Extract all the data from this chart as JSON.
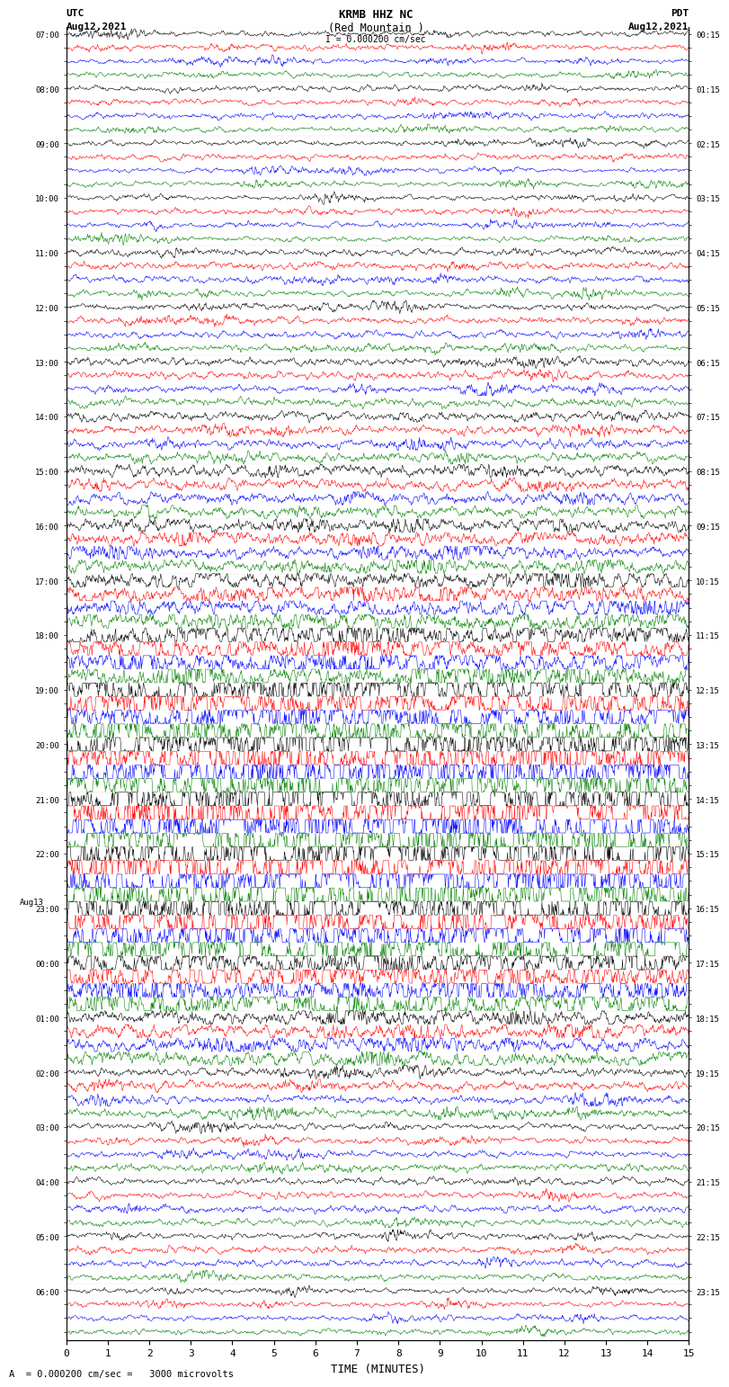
{
  "title_line1": "KRMB HHZ NC",
  "title_line2": "(Red Mountain )",
  "scale_line": "= 0.000200 cm/sec",
  "bottom_label": "A  = 0.000200 cm/sec =   3000 microvolts",
  "xlabel": "TIME (MINUTES)",
  "utc_label": "UTC",
  "pdt_label": "PDT",
  "date_label": "Aug12,2021",
  "aug13_label": "Aug13",
  "xlim": [
    0,
    15
  ],
  "xticks": [
    0,
    1,
    2,
    3,
    4,
    5,
    6,
    7,
    8,
    9,
    10,
    11,
    12,
    13,
    14,
    15
  ],
  "bg_color": "#ffffff",
  "trace_colors": [
    "black",
    "red",
    "blue",
    "green"
  ],
  "n_rows": 96,
  "left_times": [
    "07:00",
    "",
    "",
    "",
    "08:00",
    "",
    "",
    "",
    "09:00",
    "",
    "",
    "",
    "10:00",
    "",
    "",
    "",
    "11:00",
    "",
    "",
    "",
    "12:00",
    "",
    "",
    "",
    "13:00",
    "",
    "",
    "",
    "14:00",
    "",
    "",
    "",
    "15:00",
    "",
    "",
    "",
    "16:00",
    "",
    "",
    "",
    "17:00",
    "",
    "",
    "",
    "18:00",
    "",
    "",
    "",
    "19:00",
    "",
    "",
    "",
    "20:00",
    "",
    "",
    "",
    "21:00",
    "",
    "",
    "",
    "22:00",
    "",
    "",
    "",
    "23:00",
    "",
    "",
    "",
    "00:00",
    "",
    "",
    "",
    "01:00",
    "",
    "",
    "",
    "02:00",
    "",
    "",
    "",
    "03:00",
    "",
    "",
    "",
    "04:00",
    "",
    "",
    "",
    "05:00",
    "",
    "",
    "",
    "06:00",
    "",
    "",
    ""
  ],
  "right_times": [
    "00:15",
    "",
    "",
    "",
    "01:15",
    "",
    "",
    "",
    "02:15",
    "",
    "",
    "",
    "03:15",
    "",
    "",
    "",
    "04:15",
    "",
    "",
    "",
    "05:15",
    "",
    "",
    "",
    "06:15",
    "",
    "",
    "",
    "07:15",
    "",
    "",
    "",
    "08:15",
    "",
    "",
    "",
    "09:15",
    "",
    "",
    "",
    "10:15",
    "",
    "",
    "",
    "11:15",
    "",
    "",
    "",
    "12:15",
    "",
    "",
    "",
    "13:15",
    "",
    "",
    "",
    "14:15",
    "",
    "",
    "",
    "15:15",
    "",
    "",
    "",
    "16:15",
    "",
    "",
    "",
    "17:15",
    "",
    "",
    "",
    "18:15",
    "",
    "",
    "",
    "19:15",
    "",
    "",
    "",
    "20:15",
    "",
    "",
    "",
    "21:15",
    "",
    "",
    "",
    "22:15",
    "",
    "",
    "",
    "23:15",
    "",
    "",
    ""
  ],
  "aug13_row": 64,
  "amplitude_profile": [
    0.25,
    0.25,
    0.25,
    0.25,
    0.25,
    0.25,
    0.25,
    0.25,
    0.25,
    0.25,
    0.25,
    0.25,
    0.25,
    0.25,
    0.25,
    0.25,
    0.3,
    0.3,
    0.3,
    0.3,
    0.3,
    0.3,
    0.3,
    0.3,
    0.35,
    0.35,
    0.35,
    0.35,
    0.4,
    0.4,
    0.4,
    0.4,
    0.5,
    0.5,
    0.5,
    0.5,
    0.6,
    0.6,
    0.6,
    0.6,
    0.8,
    0.8,
    0.8,
    0.8,
    1.2,
    1.2,
    1.2,
    1.2,
    1.8,
    1.8,
    1.8,
    1.8,
    2.5,
    2.5,
    2.5,
    2.5,
    3.0,
    3.0,
    3.0,
    3.0,
    3.0,
    3.0,
    3.0,
    3.0,
    2.5,
    2.5,
    2.5,
    2.5,
    1.5,
    1.5,
    1.5,
    1.5,
    0.7,
    0.7,
    0.7,
    0.7,
    0.4,
    0.4,
    0.4,
    0.4,
    0.3,
    0.3,
    0.3,
    0.3,
    0.3,
    0.3,
    0.3,
    0.3,
    0.3,
    0.3,
    0.3,
    0.3,
    0.25,
    0.25,
    0.25,
    0.25
  ]
}
